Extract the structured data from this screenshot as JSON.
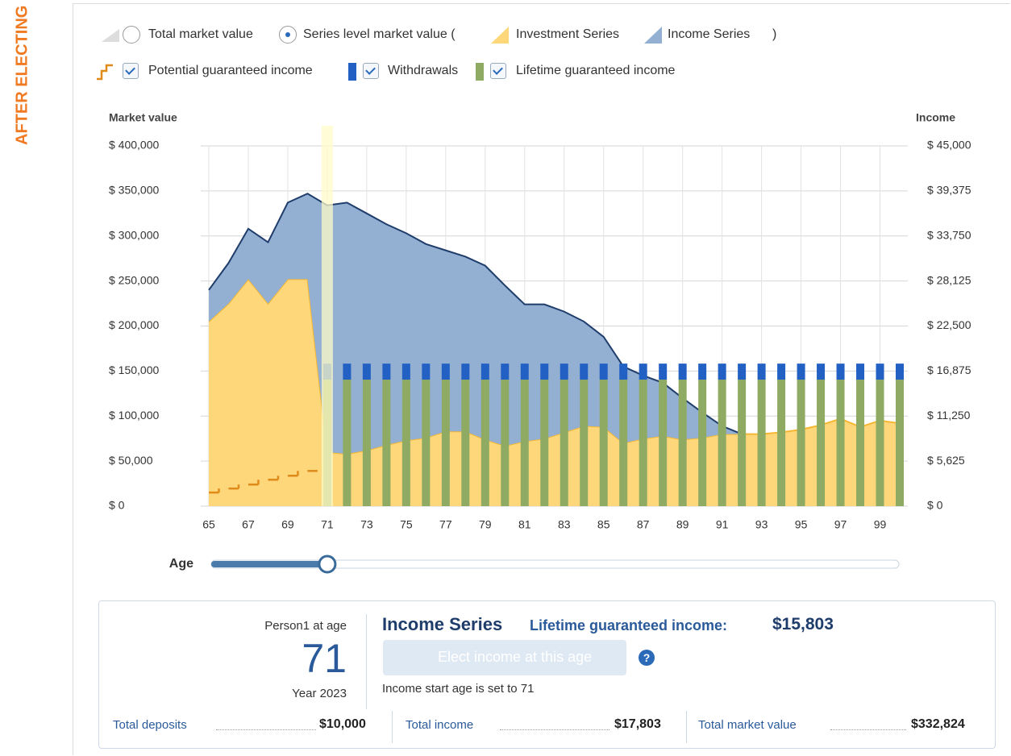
{
  "side_label": "AFTER ELECTING",
  "legend_options": {
    "total": "Total market value",
    "series_level": "Series level market value (",
    "close": ")"
  },
  "chart_data": {
    "type": "stacked-area-bar",
    "y_axis_title": "Market value",
    "y2_axis_title": "Income",
    "x": [
      65,
      66,
      67,
      68,
      69,
      70,
      71,
      72,
      73,
      74,
      75,
      76,
      77,
      78,
      79,
      80,
      81,
      82,
      83,
      84,
      85,
      86,
      87,
      88,
      89,
      90,
      91,
      92,
      93,
      94,
      95,
      96,
      97,
      98,
      99,
      100
    ],
    "xlim": [
      65,
      100
    ],
    "xticks": [
      65,
      67,
      69,
      71,
      73,
      75,
      77,
      79,
      81,
      83,
      85,
      87,
      89,
      91,
      93,
      95,
      97,
      99
    ],
    "ylim": [
      0,
      400000
    ],
    "yticks": [
      {
        "value": 0,
        "label": "$ 0"
      },
      {
        "value": 50000,
        "label": "$ 50,000"
      },
      {
        "value": 100000,
        "label": "$ 100,000"
      },
      {
        "value": 150000,
        "label": "$ 150,000"
      },
      {
        "value": 200000,
        "label": "$ 200,000"
      },
      {
        "value": 250000,
        "label": "$ 250,000"
      },
      {
        "value": 300000,
        "label": "$ 300,000"
      },
      {
        "value": 350000,
        "label": "$ 350,000"
      },
      {
        "value": 400000,
        "label": "$ 400,000"
      }
    ],
    "y2lim": [
      0,
      45000
    ],
    "y2ticks": [
      {
        "value": 0,
        "label": "$ 0"
      },
      {
        "value": 5625,
        "label": "$ 5,625"
      },
      {
        "value": 11250,
        "label": "$ 11,250"
      },
      {
        "value": 16875,
        "label": "$ 16,875"
      },
      {
        "value": 22500,
        "label": "$ 22,500"
      },
      {
        "value": 28125,
        "label": "$ 28,125"
      },
      {
        "value": 33750,
        "label": "$ 33,750"
      },
      {
        "value": 39375,
        "label": "$ 39,375"
      },
      {
        "value": 45000,
        "label": "$ 45,000"
      }
    ],
    "grid": true,
    "selected_age": 71,
    "series": [
      {
        "name": "Investment Series",
        "kind": "area",
        "color": "#fdd77a",
        "line_color": "#f5b731",
        "values": [
          205000,
          225000,
          252000,
          225000,
          252000,
          252000,
          60000,
          58000,
          62000,
          68000,
          73000,
          76000,
          83000,
          83000,
          74000,
          67000,
          72000,
          75000,
          82000,
          89000,
          88000,
          70000,
          75000,
          78000,
          74000,
          76000,
          80000,
          80000,
          80000,
          82000,
          85000,
          90000,
          97000,
          88000,
          95000,
          92000
        ]
      },
      {
        "name": "Income Series",
        "kind": "area",
        "color": "#93b0d3",
        "line_color": "#1f3d6b",
        "values": [
          35000,
          45000,
          56000,
          68000,
          85000,
          95000,
          274000,
          279000,
          263000,
          245000,
          230000,
          215000,
          201000,
          194000,
          193000,
          178000,
          152000,
          149000,
          134000,
          116000,
          100000,
          85000,
          70000,
          59000,
          46000,
          28000,
          9000,
          0,
          null,
          null,
          null,
          null,
          null,
          null,
          null,
          null
        ]
      },
      {
        "name": "Potential guaranteed income",
        "kind": "step",
        "axis": "y2",
        "color": "#e08a1a",
        "values": [
          1700,
          2200,
          2700,
          3300,
          3800,
          4400,
          null,
          null,
          null,
          null,
          null,
          null,
          null,
          null,
          null,
          null,
          null,
          null,
          null,
          null,
          null,
          null,
          null,
          null,
          null,
          null,
          null,
          null,
          null,
          null,
          null,
          null,
          null,
          null,
          null,
          null
        ]
      },
      {
        "name": "Lifetime guaranteed income",
        "kind": "bar",
        "axis": "y2",
        "color": "#8faa62",
        "values": [
          null,
          null,
          null,
          null,
          null,
          null,
          15803,
          15803,
          15803,
          15803,
          15803,
          15803,
          15803,
          15803,
          15803,
          15803,
          15803,
          15803,
          15803,
          15803,
          15803,
          15803,
          15803,
          15803,
          15803,
          15803,
          15803,
          15803,
          15803,
          15803,
          15803,
          15803,
          15803,
          15803,
          15803,
          15803
        ]
      },
      {
        "name": "Withdrawals",
        "kind": "bar",
        "axis": "y2",
        "color": "#2260c4",
        "values": [
          null,
          null,
          null,
          null,
          null,
          null,
          2000,
          2000,
          2000,
          2000,
          2000,
          2000,
          2000,
          2000,
          2000,
          2000,
          2000,
          2000,
          2000,
          2000,
          2000,
          2000,
          2000,
          2000,
          2000,
          2000,
          2000,
          2000,
          2000,
          2000,
          2000,
          2000,
          2000,
          2000,
          2000,
          2000
        ]
      }
    ]
  },
  "slider": {
    "label": "Age"
  },
  "summary": {
    "person": "Person1  at age",
    "year": "Year 2023",
    "series": "Income Series",
    "lgi_label": "Lifetime guaranteed income:",
    "lgi_value": "$15,803",
    "button": "Elect income at this age",
    "help": "?",
    "start_note": "Income start age is set to 71",
    "totals": [
      {
        "label": "Total deposits",
        "value": "$10,000"
      },
      {
        "label": "Total income",
        "value": "$17,803"
      },
      {
        "label": "Total market value",
        "value": "$332,824"
      }
    ]
  }
}
